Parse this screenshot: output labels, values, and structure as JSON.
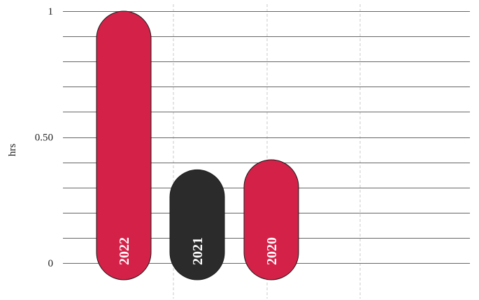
{
  "chart_data": {
    "type": "bar",
    "orientation": "vertical",
    "categories": [
      "2022",
      "2021",
      "2020"
    ],
    "values": [
      1.0,
      0.37,
      0.41
    ],
    "bar_colors": [
      "#d42148",
      "#2b2b2b",
      "#d42148"
    ],
    "ylabel": "hrs",
    "xlabel": "",
    "ylim": [
      0,
      1
    ],
    "yticks": [
      {
        "value": 0,
        "label": "0"
      },
      {
        "value": 0.5,
        "label": "0.50"
      },
      {
        "value": 1,
        "label": "1"
      }
    ],
    "grid": {
      "horizontal": true,
      "horizontal_step": 0.1,
      "vertical": "dashed"
    },
    "bar_shape": "rounded-pill",
    "labels_inside_bars": true,
    "legend": "none"
  }
}
